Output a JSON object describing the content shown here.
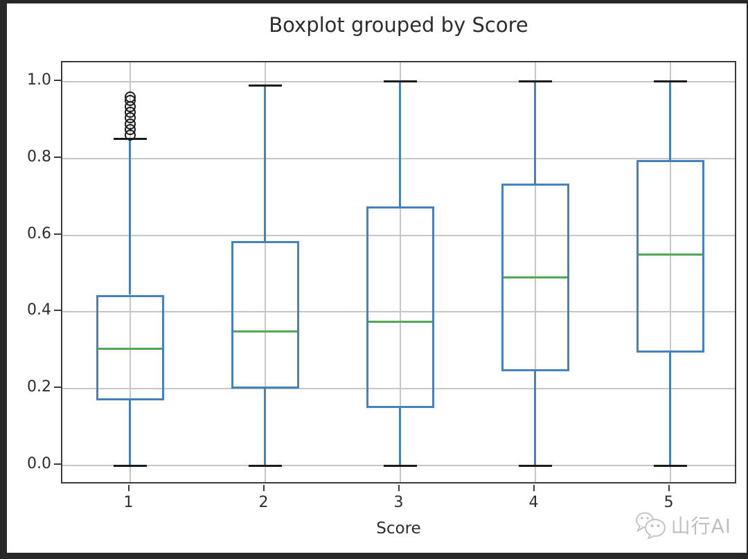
{
  "page": {
    "background_color": "#282828",
    "figure_background": "#ffffff"
  },
  "watermark": {
    "icon": "wechat-chat-bubbles-icon",
    "text": "山行AI",
    "color": "#bfbfbf"
  },
  "chart_data": {
    "type": "boxplot",
    "title": "Boxplot grouped by Score",
    "xlabel": "Score",
    "ylabel": "",
    "grid": true,
    "categories": [
      "1",
      "2",
      "3",
      "4",
      "5"
    ],
    "yticks": [
      0.0,
      0.2,
      0.4,
      0.6,
      0.8,
      1.0
    ],
    "ytick_labels": [
      "0.0",
      "0.2",
      "0.4",
      "0.6",
      "0.8",
      "1.0"
    ],
    "ylim": [
      -0.05,
      1.05
    ],
    "series": [
      {
        "category": "1",
        "whisker_low": 0.0,
        "q1": 0.17,
        "median": 0.305,
        "q3": 0.445,
        "whisker_high": 0.85,
        "outliers": [
          0.86,
          0.875,
          0.89,
          0.905,
          0.92,
          0.935,
          0.95,
          0.96
        ]
      },
      {
        "category": "2",
        "whisker_low": 0.0,
        "q1": 0.2,
        "median": 0.35,
        "q3": 0.585,
        "whisker_high": 0.99,
        "outliers": []
      },
      {
        "category": "3",
        "whisker_low": 0.0,
        "q1": 0.15,
        "median": 0.375,
        "q3": 0.675,
        "whisker_high": 1.0,
        "outliers": []
      },
      {
        "category": "4",
        "whisker_low": 0.0,
        "q1": 0.245,
        "median": 0.49,
        "q3": 0.735,
        "whisker_high": 1.0,
        "outliers": []
      },
      {
        "category": "5",
        "whisker_low": 0.0,
        "q1": 0.295,
        "median": 0.55,
        "q3": 0.795,
        "whisker_high": 1.0,
        "outliers": []
      }
    ],
    "colors": {
      "box": "#4581bd",
      "whisker": "#4581bd",
      "median": "#53a653",
      "cap": "#1a1a1a",
      "outlier": "#1a1a1a",
      "grid": "#c6c6c6",
      "spine": "#3a3a3a",
      "text": "#2d2d2d"
    }
  }
}
